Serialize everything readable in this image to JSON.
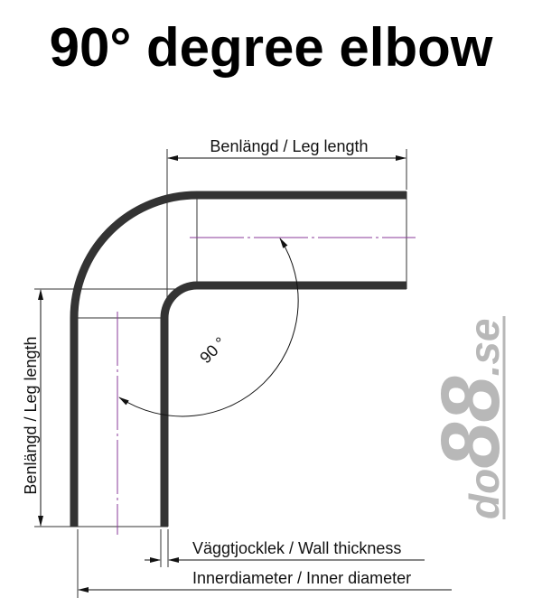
{
  "title": "90° degree elbow",
  "labels": {
    "leg_length_top": "Benlängd / Leg length",
    "leg_length_side": "Benlängd / Leg length",
    "angle": "90 °",
    "wall_thickness": "Väggtjocklek / Wall thickness",
    "inner_diameter": "Innerdiameter / Inner diameter"
  },
  "logo": {
    "text": "do88.se"
  },
  "colors": {
    "pipe": "#333333",
    "centerline": "#8a3a9a",
    "logo": "#b8b8b8"
  }
}
